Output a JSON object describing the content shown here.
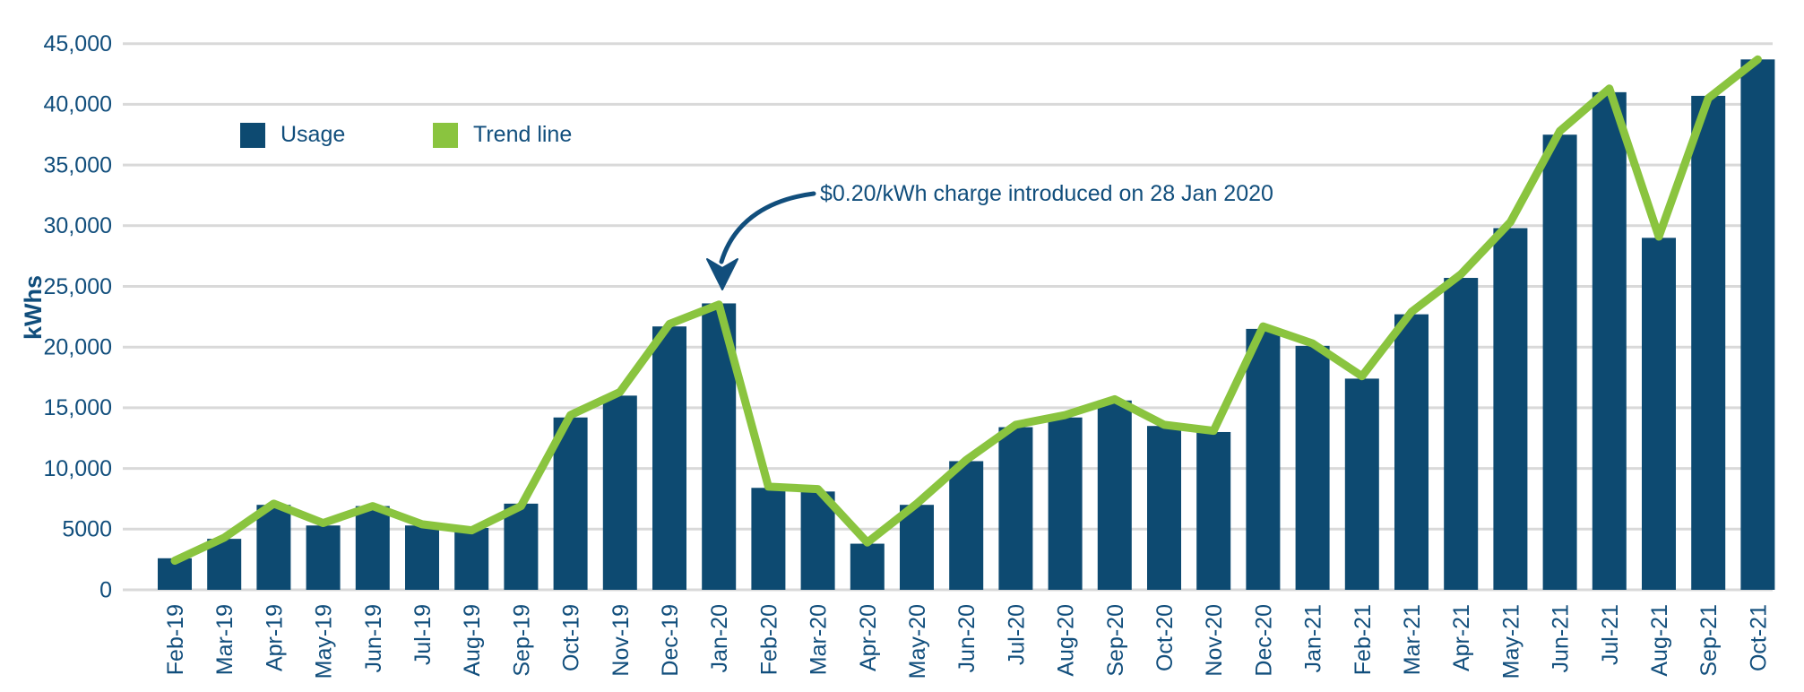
{
  "chart_data": {
    "type": "bar",
    "title": "",
    "xlabel": "",
    "ylabel": "kWhs",
    "ylim": [
      0,
      45000
    ],
    "ytick_step": 5000,
    "ytick_labels": [
      "0",
      "5000",
      "10,000",
      "15,000",
      "20,000",
      "25,000",
      "30,000",
      "35,000",
      "40,000",
      "45,000"
    ],
    "grid": true,
    "legend_position": "top-left",
    "categories": [
      "Feb-19",
      "Mar-19",
      "Apr-19",
      "May-19",
      "Jun-19",
      "Jul-19",
      "Aug-19",
      "Sep-19",
      "Oct-19",
      "Nov-19",
      "Dec-19",
      "Jan-20",
      "Feb-20",
      "Mar-20",
      "Apr-20",
      "May-20",
      "Jun-20",
      "Jul-20",
      "Aug-20",
      "Sep-20",
      "Oct-20",
      "Nov-20",
      "Dec-20",
      "Jan-21",
      "Feb-21",
      "Mar-21",
      "Apr-21",
      "May-21",
      "Jun-21",
      "Jul-21",
      "Aug-21",
      "Sep-21",
      "Oct-21"
    ],
    "series": [
      {
        "name": "Usage",
        "type": "bar",
        "color": "#0d4a71",
        "values": [
          2600,
          4200,
          7000,
          5300,
          6900,
          5300,
          5100,
          7100,
          14200,
          16000,
          21700,
          23600,
          8400,
          8100,
          3800,
          7000,
          10600,
          13400,
          14200,
          15600,
          13500,
          13000,
          21500,
          20100,
          17400,
          22700,
          25700,
          29800,
          37500,
          41000,
          29000,
          40700,
          43700
        ]
      },
      {
        "name": "Trend line",
        "type": "line",
        "color": "#8ac43f",
        "values": [
          2400,
          4300,
          7100,
          5500,
          6900,
          5400,
          4900,
          6900,
          14400,
          16300,
          21900,
          23500,
          8500,
          8300,
          3900,
          7100,
          10700,
          13600,
          14400,
          15700,
          13600,
          13100,
          21700,
          20300,
          17600,
          22900,
          26000,
          30300,
          37800,
          41300,
          29100,
          40500,
          43700
        ]
      }
    ]
  },
  "axis": {
    "y_title": "kWhs"
  },
  "legend": {
    "usage_label": "Usage",
    "trend_label": "Trend line"
  },
  "annotation": {
    "text": "$0.20/kWh charge introduced on 28 Jan 2020",
    "target_category": "Jan-20"
  },
  "colors": {
    "bar": "#0d4a71",
    "trend": "#8ac43f",
    "grid": "#d9d9d9",
    "text": "#114e7c"
  }
}
